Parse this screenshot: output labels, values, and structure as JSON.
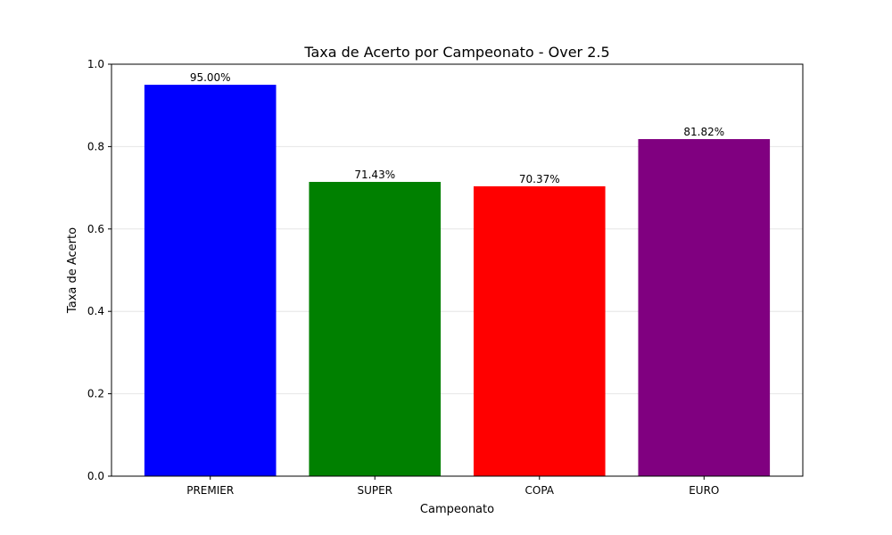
{
  "chart_data": {
    "type": "bar",
    "title": "Taxa de Acerto por Campeonato - Over 2.5",
    "xlabel": "Campeonato",
    "ylabel": "Taxa de Acerto",
    "categories": [
      "PREMIER",
      "SUPER",
      "COPA",
      "EURO"
    ],
    "values": [
      0.95,
      0.7143,
      0.7037,
      0.8182
    ],
    "data_labels": [
      "95.00%",
      "71.43%",
      "70.37%",
      "81.82%"
    ],
    "colors": [
      "#0000ff",
      "#008000",
      "#ff0000",
      "#800080"
    ],
    "ylim": [
      0,
      1.0
    ],
    "yticks": [
      0.0,
      0.2,
      0.4,
      0.6,
      0.8,
      1.0
    ],
    "ytick_labels": [
      "0.0",
      "0.2",
      "0.4",
      "0.6",
      "0.8",
      "1.0"
    ],
    "grid": "horizontal"
  }
}
